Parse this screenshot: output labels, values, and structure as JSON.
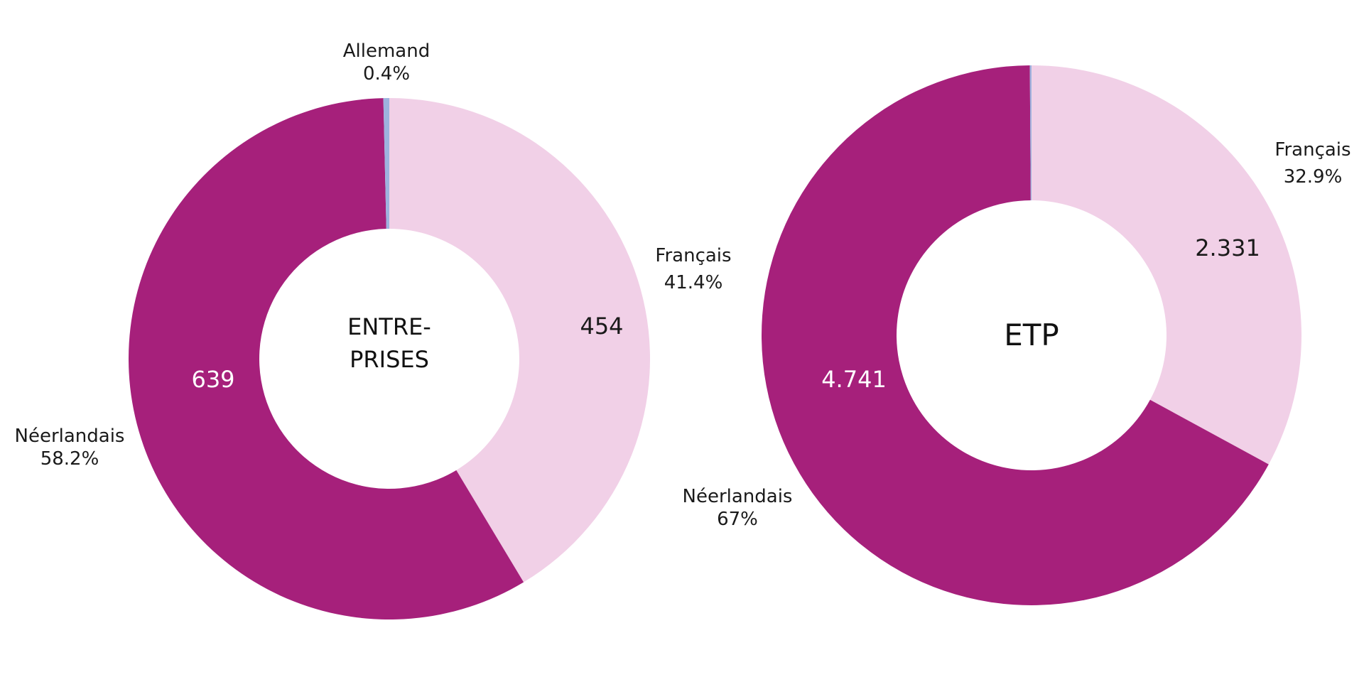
{
  "chart_data": [
    {
      "type": "pie",
      "center_label": [
        "ENTRE-",
        "PRISES"
      ],
      "start_angle_deg": 0,
      "direction": "clockwise",
      "slices": [
        {
          "name": "Français",
          "value": 454,
          "value_label": "454",
          "percent_label": "41.4%",
          "color": "#F1D0E7"
        },
        {
          "name": "Néerlandais",
          "value": 639,
          "value_label": "639",
          "percent_label": "58.2%",
          "color": "#A6207B"
        },
        {
          "name": "Allemand",
          "value": 4,
          "value_label": "",
          "percent_label": "0.4%",
          "color": "#9DB3DE"
        }
      ]
    },
    {
      "type": "pie",
      "center_label": [
        "ETP"
      ],
      "start_angle_deg": 0,
      "direction": "clockwise",
      "slices": [
        {
          "name": "Français",
          "value": 2331,
          "value_label": "2.331",
          "percent_label": "32.9%",
          "color": "#F1D0E7"
        },
        {
          "name": "Néerlandais",
          "value": 4741,
          "value_label": "4.741",
          "percent_label": "67%",
          "color": "#A6207B"
        },
        {
          "name": "Allemand",
          "value": 7,
          "value_label": "",
          "percent_label": "",
          "color": "#9DB3DE"
        }
      ]
    }
  ]
}
